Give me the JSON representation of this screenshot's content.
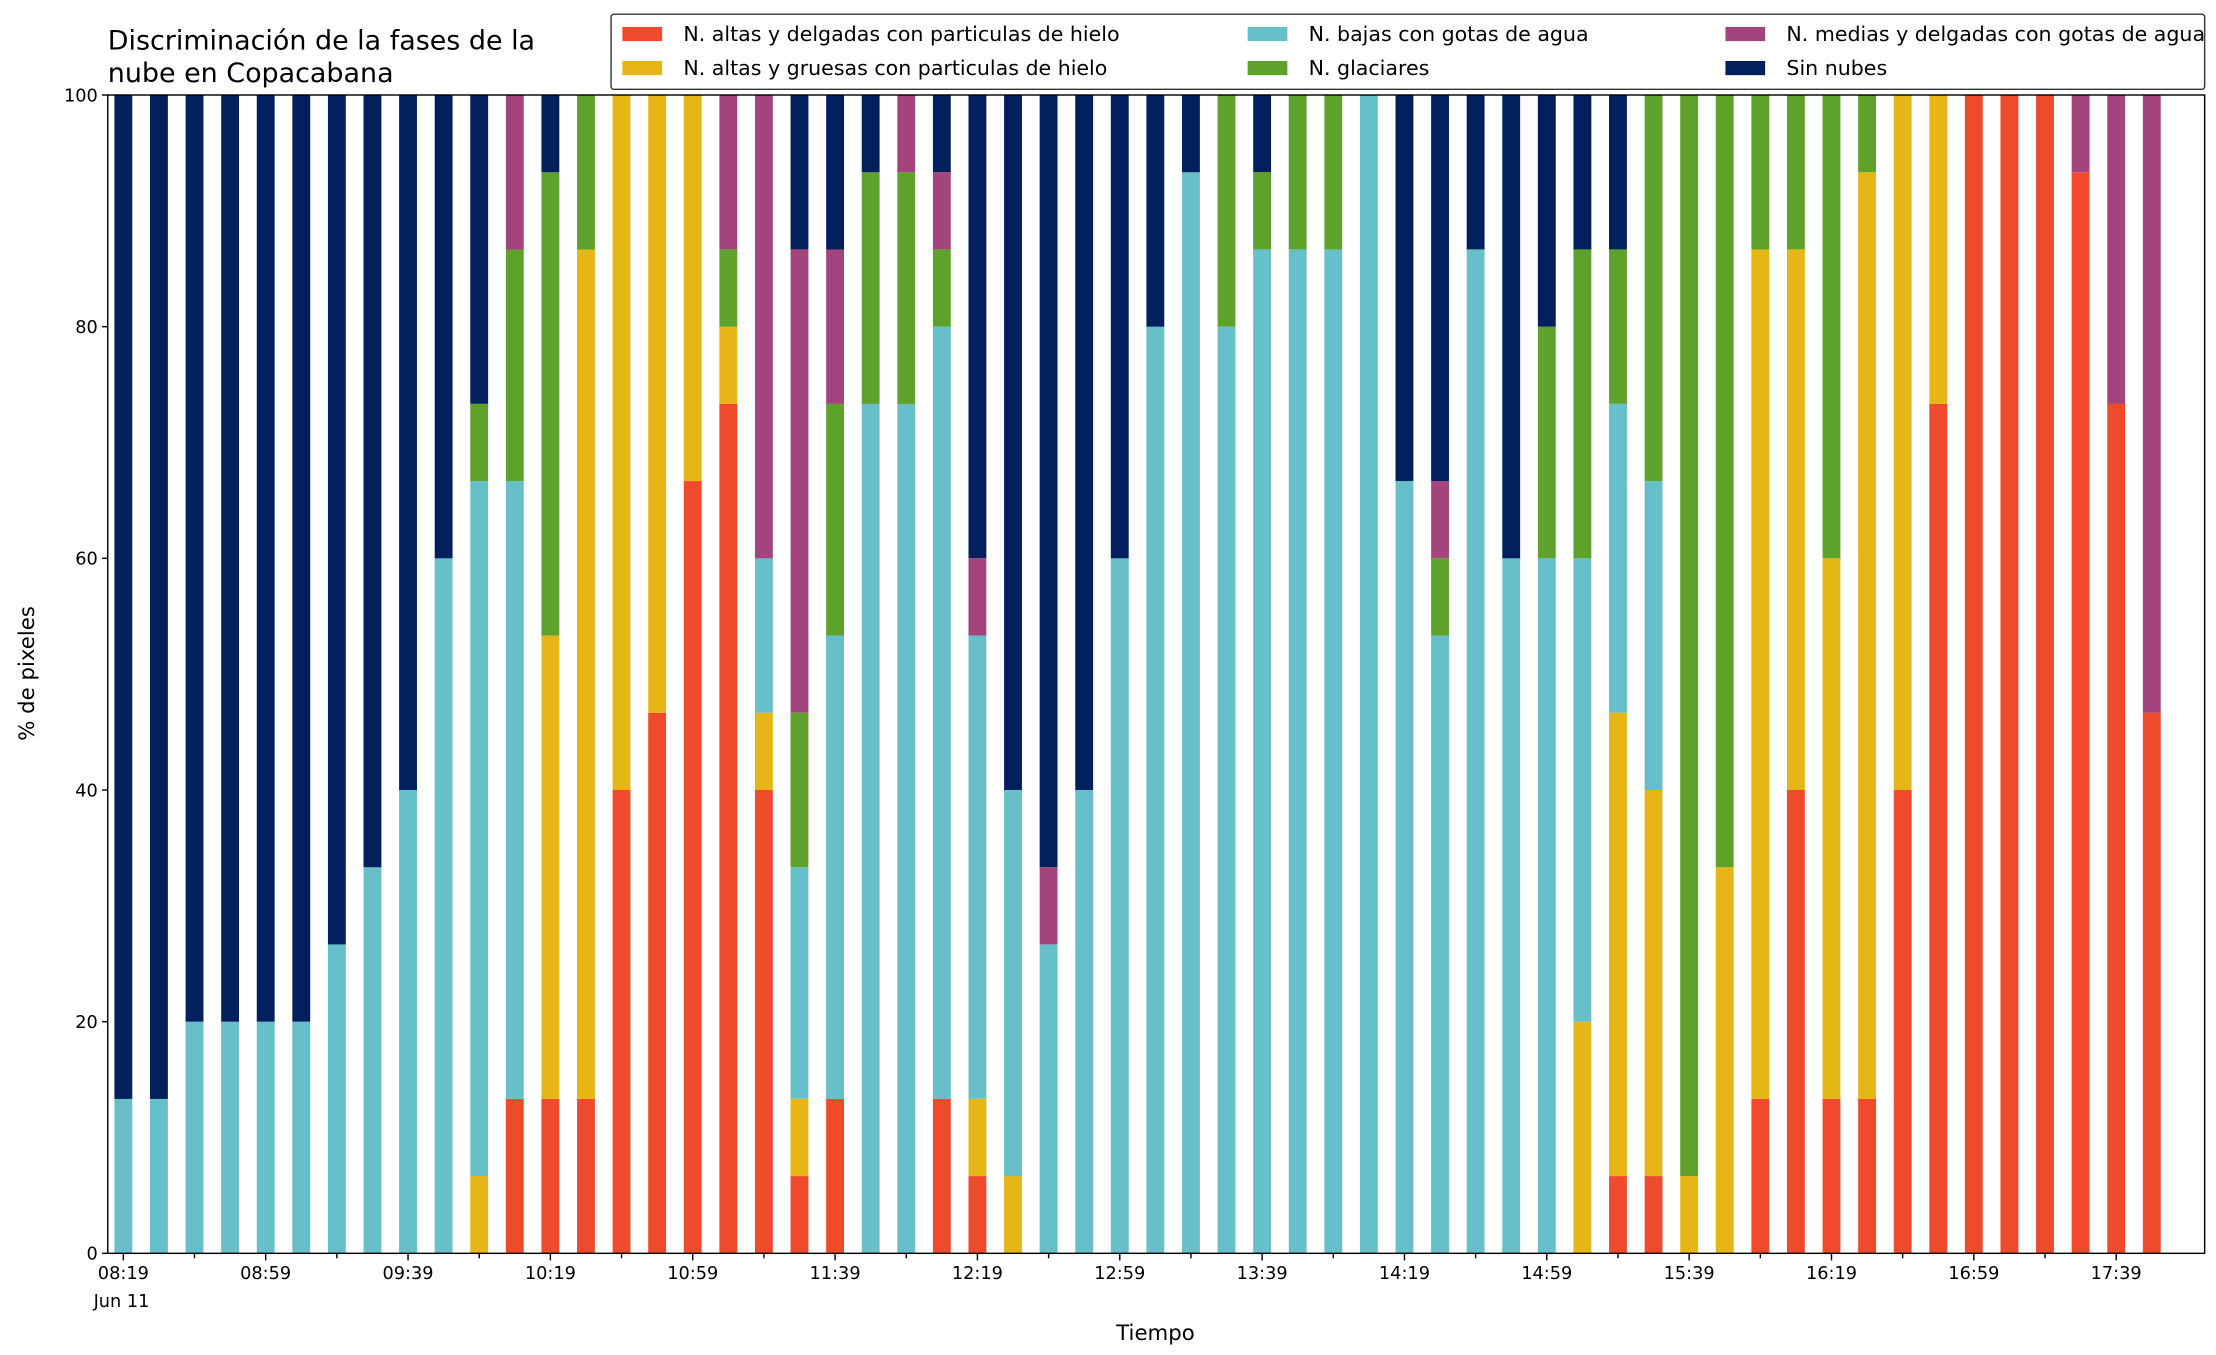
{
  "chart_data": {
    "type": "stacked_bar",
    "title": "Discriminación de la fases de la nube en Copacabana",
    "x_label": "Tiempo",
    "y_label": "% de pixeles",
    "date_label": "Jun 11",
    "categories": [
      "08:19",
      null,
      null,
      null,
      "08:59",
      null,
      null,
      null,
      "09:39",
      null,
      null,
      null,
      "10:19",
      null,
      null,
      null,
      "10:59",
      null,
      null,
      null,
      "11:39",
      null,
      null,
      null,
      "12:19",
      null,
      null,
      null,
      "12:59",
      null,
      null,
      null,
      "13:39",
      null,
      null,
      null,
      "14:19",
      null,
      null,
      null,
      "14:59",
      null,
      null,
      null,
      "15:39",
      null,
      null,
      null,
      "16:19",
      null,
      null,
      null,
      "16:59",
      null,
      null,
      null,
      "17:39",
      null
    ],
    "ylim": [
      0,
      100
    ],
    "yticks": [
      0,
      20,
      40,
      60,
      80,
      100
    ],
    "legend": "upper right",
    "series": [
      {
        "name": "N. altas y delgadas con particulas de hielo",
        "color": "#ef4a2b",
        "values": [
          0,
          0,
          0,
          0,
          0,
          0,
          0,
          0,
          0,
          0,
          0,
          13.33,
          13.33,
          13.33,
          40,
          46.67,
          66.67,
          73.33,
          40,
          6.67,
          13.33,
          0,
          0,
          13.33,
          6.67,
          0,
          0,
          0,
          0,
          0,
          0,
          0,
          0,
          0,
          0,
          0,
          0,
          0,
          0,
          0,
          0,
          0,
          6.67,
          6.67,
          0,
          0,
          13.33,
          40,
          13.33,
          13.33,
          40,
          73.33,
          100,
          100,
          100,
          93.33,
          73.33,
          46.67
        ]
      },
      {
        "name": "N. altas y gruesas con particulas de hielo",
        "color": "#e5b616",
        "values": [
          0,
          0,
          0,
          0,
          0,
          0,
          0,
          0,
          0,
          0,
          6.67,
          0,
          40,
          73.33,
          60,
          53.33,
          33.33,
          6.67,
          6.67,
          6.67,
          0,
          0,
          0,
          0,
          6.67,
          6.67,
          0,
          0,
          0,
          0,
          0,
          0,
          0,
          0,
          0,
          0,
          0,
          0,
          0,
          0,
          0,
          20,
          40,
          33.33,
          6.67,
          33.33,
          73.33,
          46.67,
          46.67,
          80,
          60,
          26.67,
          0,
          0,
          0,
          0,
          0,
          0
        ]
      },
      {
        "name": "N. bajas con gotas de agua",
        "color": "#66bfc9",
        "values": [
          13.33,
          13.33,
          20,
          20,
          20,
          20,
          26.67,
          33.33,
          40,
          60,
          60,
          53.33,
          0,
          0,
          0,
          0,
          0,
          0,
          13.33,
          20,
          40,
          73.33,
          73.33,
          66.67,
          40,
          33.33,
          26.67,
          40,
          60,
          80,
          93.33,
          80,
          86.67,
          86.67,
          86.67,
          100,
          66.67,
          53.33,
          86.67,
          60,
          60,
          40,
          26.67,
          26.67,
          0,
          0,
          0,
          0,
          0,
          0,
          0,
          0,
          0,
          0,
          0,
          0,
          0,
          0
        ]
      },
      {
        "name": "N. glaciares",
        "color": "#5ea22c",
        "values": [
          0,
          0,
          0,
          0,
          0,
          0,
          0,
          0,
          0,
          0,
          6.67,
          20,
          40,
          13.33,
          0,
          0,
          0,
          6.67,
          0,
          13.33,
          20,
          20,
          20,
          6.67,
          0,
          0,
          0,
          0,
          0,
          0,
          0,
          20,
          6.67,
          13.33,
          13.33,
          0,
          0,
          6.67,
          0,
          0,
          20,
          26.67,
          13.33,
          33.33,
          93.33,
          66.67,
          13.33,
          13.33,
          40,
          6.67,
          0,
          0,
          0,
          0,
          0,
          0,
          0,
          0
        ]
      },
      {
        "name": "N. medias y delgadas con gotas de agua",
        "color": "#a3457c",
        "values": [
          0,
          0,
          0,
          0,
          0,
          0,
          0,
          0,
          0,
          0,
          0,
          13.33,
          0,
          0,
          0,
          0,
          0,
          13.33,
          40,
          40,
          13.33,
          0,
          6.67,
          6.67,
          6.67,
          0,
          6.67,
          0,
          0,
          0,
          0,
          0,
          0,
          0,
          0,
          0,
          0,
          6.67,
          0,
          0,
          0,
          0,
          0,
          0,
          0,
          0,
          0,
          0,
          0,
          0,
          0,
          0,
          0,
          0,
          0,
          6.67,
          26.67,
          53.33
        ]
      },
      {
        "name": "Sin nubes",
        "color": "#021f5e",
        "values": [
          86.67,
          86.67,
          80,
          80,
          80,
          80,
          73.33,
          66.67,
          60,
          40,
          26.67,
          0,
          6.67,
          0,
          0,
          0,
          0,
          0,
          0,
          13.33,
          13.33,
          6.67,
          0,
          6.67,
          40,
          60,
          66.67,
          60,
          40,
          20,
          6.67,
          0,
          6.67,
          0,
          0,
          0,
          33.33,
          33.33,
          13.33,
          40,
          20,
          13.33,
          13.33,
          0,
          0,
          0,
          0,
          0,
          0,
          0,
          0,
          0,
          0,
          0,
          0,
          0,
          0,
          0
        ]
      }
    ]
  }
}
